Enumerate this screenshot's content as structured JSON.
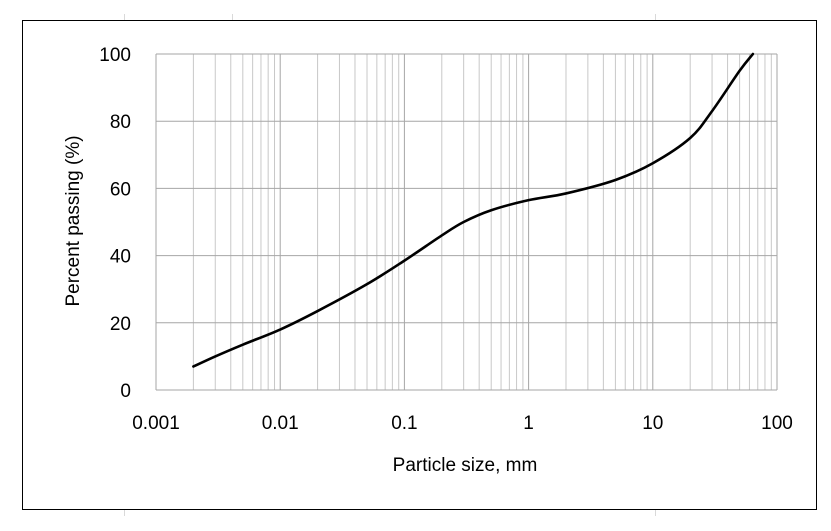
{
  "chart_data": {
    "type": "line",
    "title": "",
    "xlabel": "Particle size, mm",
    "ylabel": "Percent passing (%)",
    "x_scale": "log",
    "xlim": [
      0.001,
      100
    ],
    "ylim": [
      0,
      100
    ],
    "x_tick_labels": [
      "0.001",
      "0.01",
      "0.1",
      "1",
      "10",
      "100"
    ],
    "y_tick_labels": [
      "0",
      "20",
      "40",
      "60",
      "80",
      "100"
    ],
    "grid": true,
    "legend": "none",
    "series": [
      {
        "color": "#000000",
        "x": [
          0.002,
          0.003,
          0.005,
          0.01,
          0.02,
          0.05,
          0.1,
          0.2,
          0.3,
          0.5,
          1,
          2,
          5,
          10,
          20,
          30,
          50,
          64
        ],
        "y": [
          7,
          10,
          13.5,
          18,
          23.5,
          31.5,
          38.5,
          46,
          50,
          53.5,
          56.5,
          58.5,
          62.5,
          67.5,
          75,
          83,
          95,
          100
        ]
      }
    ]
  }
}
